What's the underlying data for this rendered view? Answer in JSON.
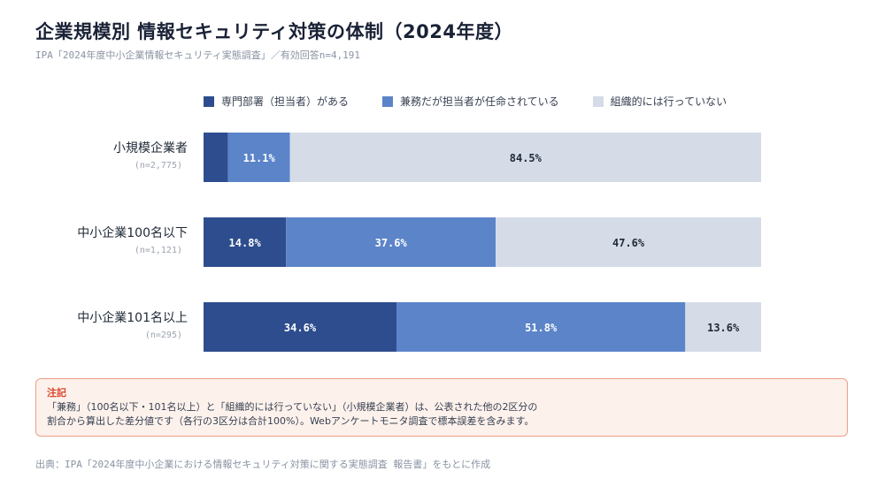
{
  "title": "企業規模別 情報セキュリティ対策の体制（2024年度）",
  "subtitle": "IPA「2024年度中小企業情報セキュリティ実態調査」／有効回答n=4,191",
  "colors": {
    "dedicated": "#2e4d8e",
    "concurrent": "#5b84c9",
    "none": "#d5dce8",
    "label_light": "#ffffff",
    "label_dark": "#1f2937"
  },
  "chart_data": {
    "type": "bar",
    "orientation": "horizontal",
    "stacked": true,
    "xlim": [
      0,
      100
    ],
    "unit": "%",
    "legend_position": "top",
    "categories": [
      "小規模企業者",
      "中小企業100名以下",
      "中小企業101名以上"
    ],
    "category_n": [
      "(n=2,775)",
      "(n=1,121)",
      "(n=295)"
    ],
    "series": [
      {
        "name": "専門部署（担当者）がある",
        "values": [
          4.4,
          14.8,
          34.6
        ],
        "labels": [
          "",
          "14.8%",
          "34.6%"
        ]
      },
      {
        "name": "兼務だが担当者が任命されている",
        "values": [
          11.1,
          37.6,
          51.8
        ],
        "labels": [
          "11.1%",
          "37.6%",
          "51.8%"
        ]
      },
      {
        "name": "組織的には行っていない",
        "values": [
          84.5,
          47.6,
          13.6
        ],
        "labels": [
          "84.5%",
          "47.6%",
          "13.6%"
        ]
      }
    ]
  },
  "note": {
    "title": "注記",
    "line1": "「兼務」（100名以下・101名以上）と「組織的には行っていない」（小規模企業者）は、公表された他の2区分の",
    "line2": "割合から算出した差分値です（各行の3区分は合計100%）。Webアンケートモニタ調査で標本誤差を含みます。"
  },
  "source": "出典：IPA「2024年度中小企業における情報セキュリティ対策に関する実態調査 報告書」をもとに作成"
}
